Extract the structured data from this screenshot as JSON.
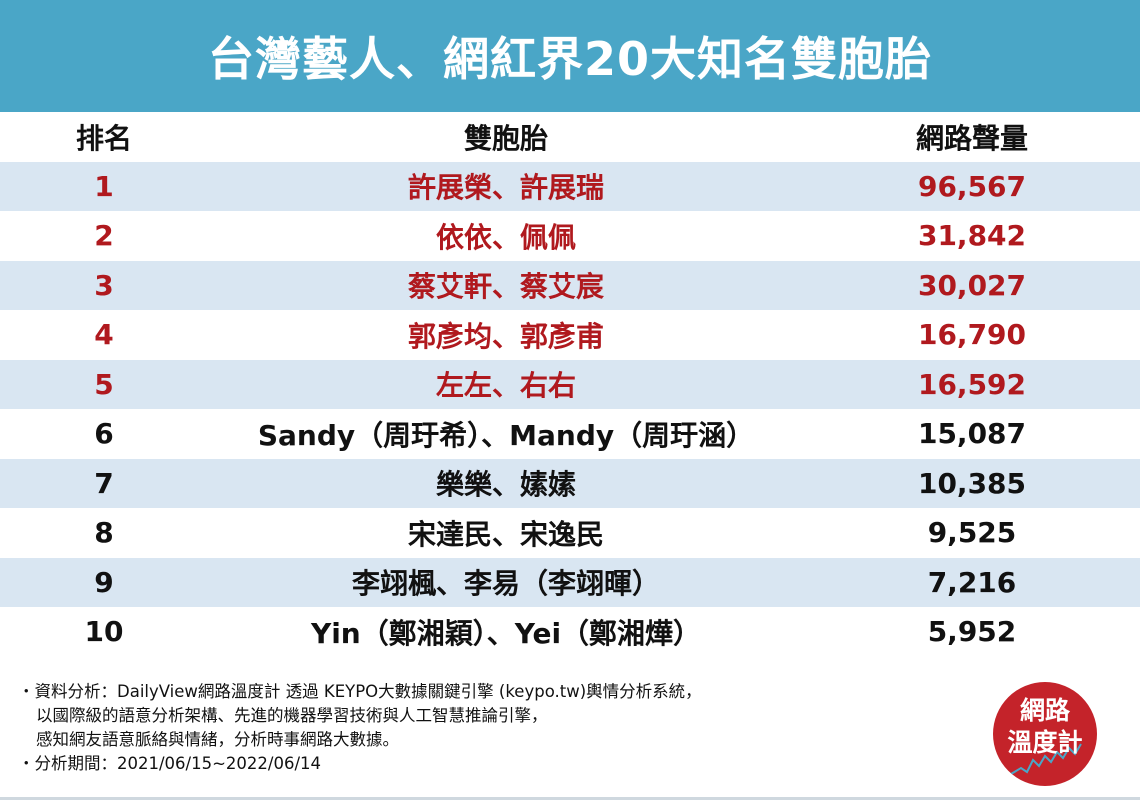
{
  "title": "台灣藝人、網紅界20大知名雙胞胎",
  "table": {
    "headers": {
      "rank": "排名",
      "name": "雙胞胎",
      "volume": "網路聲量"
    },
    "rows": [
      {
        "rank": "1",
        "name": "許展榮、許展瑞",
        "volume": "96,567"
      },
      {
        "rank": "2",
        "name": "依依、佩佩",
        "volume": "31,842"
      },
      {
        "rank": "3",
        "name": "蔡艾軒、蔡艾宸",
        "volume": "30,027"
      },
      {
        "rank": "4",
        "name": "郭彥均、郭彥甫",
        "volume": "16,790"
      },
      {
        "rank": "5",
        "name": "左左、右右",
        "volume": "16,592"
      },
      {
        "rank": "6",
        "name": "Sandy（周玗希）、Mandy（周玗涵）",
        "volume": "15,087"
      },
      {
        "rank": "7",
        "name": "樂樂、嫊嫊",
        "volume": "10,385"
      },
      {
        "rank": "8",
        "name": "宋達民、宋逸民",
        "volume": "9,525"
      },
      {
        "rank": "9",
        "name": "李翊楓、李易（李翊暉）",
        "volume": "7,216"
      },
      {
        "rank": "10",
        "name": "Yin（鄭湘穎）、Yei（鄭湘燁）",
        "volume": "5,952"
      }
    ]
  },
  "notes": {
    "line1": "・資料分析：DailyView網路溫度計 透過 KEYPO大數據關鍵引擎 (keypo.tw)輿情分析系統，",
    "line2": "以國際級的語意分析架構、先進的機器學習技術與人工智慧推論引擎，",
    "line3": "感知網友語意脈絡與情緒，分析時事網路大數據。",
    "line4": "・分析期間：2021/06/15~2022/06/14"
  },
  "logo": {
    "line1": "網路",
    "line2": "溫度計"
  },
  "colors": {
    "header_bg": "#4aa6c7",
    "row_shade": "#d9e6f2",
    "top5_text": "#b0191e",
    "logo_bg": "#c4232a"
  }
}
